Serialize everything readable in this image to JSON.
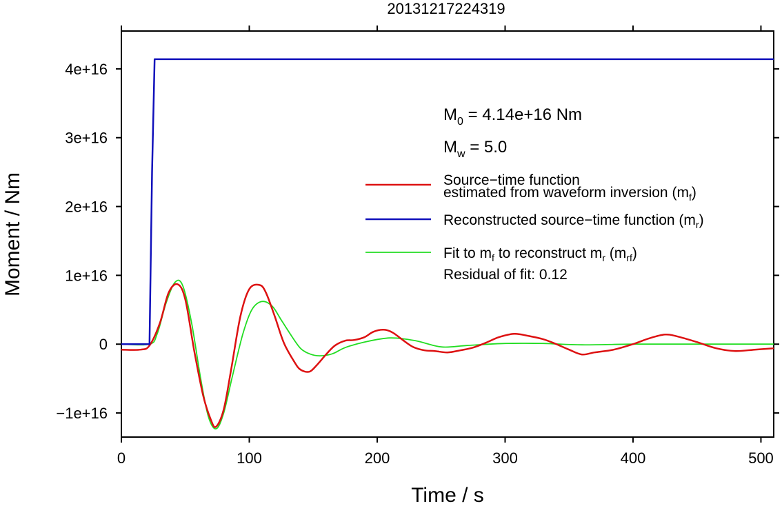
{
  "chart_data": {
    "type": "line",
    "title": "20131217224319",
    "xlabel": "Time / s",
    "ylabel": "Moment / Nm",
    "xlim": [
      0,
      510
    ],
    "ylim": [
      -1.35e+16,
      4.55e+16
    ],
    "x_ticks": [
      0,
      100,
      200,
      300,
      400,
      500
    ],
    "x_tick_labels": [
      "0",
      "100",
      "200",
      "300",
      "400",
      "500"
    ],
    "y_ticks": [
      -1e+16,
      0,
      1e+16,
      2e+16,
      3e+16,
      4e+16
    ],
    "y_tick_labels": [
      "−1e+16",
      "0",
      "1e+16",
      "2e+16",
      "3e+16",
      "4e+16"
    ],
    "grid": false,
    "legend_position": "right",
    "annotations": {
      "m0": {
        "base": "M",
        "sub": "0",
        "rest": " = 4.14e+16 Nm"
      },
      "mw": {
        "base": "M",
        "sub": "w",
        "rest": " = 5.0"
      },
      "residual": "Residual of fit: 0.12"
    },
    "legend": [
      {
        "line1": "Source−time function",
        "line2": "estimated from waveform inversion (m",
        "sub": "f",
        "close": ")",
        "color": "#dd1111"
      },
      {
        "line1": "Reconstructed source−time function (m",
        "sub": "r",
        "close": ")",
        "color": "#1111bb"
      },
      {
        "line1": "Fit to m",
        "sub1": "f",
        "mid": " to reconstruct m",
        "sub2": "r",
        "mid2": " (m",
        "sub3": "rf",
        "close": ")",
        "color": "#22dd22"
      }
    ],
    "series": [
      {
        "name": "Source−time function estimated from waveform inversion (mf)",
        "color": "#dd1111",
        "x": [
          0,
          15,
          22,
          30,
          37,
          44,
          50,
          57,
          64,
          70,
          74,
          80,
          86,
          93,
          100,
          108,
          113,
          120,
          127,
          135,
          140,
          147,
          153,
          160,
          167,
          175,
          182,
          190,
          197,
          205,
          212,
          220,
          228,
          237,
          245,
          255,
          265,
          275,
          285,
          295,
          307,
          318,
          330,
          340,
          350,
          360,
          370,
          385,
          400,
          412,
          425,
          435,
          450,
          465,
          480,
          495,
          510
        ],
        "y": [
          -800000000000000.0,
          -800000000000000.0,
          -200000000000000.0,
          3000000000000000.0,
          7500000000000000.0,
          8700000000000000.0,
          6500000000000000.0,
          -1000000000000000.0,
          -7500000000000000.0,
          -1.1e+16,
          -1.2e+16,
          -9500000000000000.0,
          -3500000000000000.0,
          4000000000000000.0,
          8000000000000000.0,
          8600000000000000.0,
          7500000000000000.0,
          4000000000000000.0,
          200000000000000.0,
          -2500000000000000.0,
          -3700000000000000.0,
          -4000000000000000.0,
          -3000000000000000.0,
          -1500000000000000.0,
          -200000000000000.0,
          500000000000000.0,
          600000000000000.0,
          1000000000000000.0,
          1800000000000000.0,
          2100000000000000.0,
          1700000000000000.0,
          600000000000000.0,
          -400000000000000.0,
          -900000000000000.0,
          -1000000000000000.0,
          -1200000000000000.0,
          -900000000000000.0,
          -500000000000000.0,
          200000000000000.0,
          1000000000000000.0,
          1500000000000000.0,
          1200000000000000.0,
          700000000000000.0,
          0.0,
          -800000000000000.0,
          -1500000000000000.0,
          -1200000000000000.0,
          -800000000000000.0,
          0.0,
          800000000000000.0,
          1400000000000000.0,
          1100000000000000.0,
          300000000000000.0,
          -600000000000000.0,
          -1000000000000000.0,
          -800000000000000.0,
          -600000000000000.0
        ]
      },
      {
        "name": "Reconstructed source−time function (mr)",
        "color": "#1111bb",
        "x": [
          0,
          22,
          24,
          26,
          510
        ],
        "y": [
          0,
          0,
          2.5e+16,
          4.14e+16,
          4.14e+16
        ]
      },
      {
        "name": "Fit to mf to reconstruct mr (mrf)",
        "color": "#22dd22",
        "x": [
          0,
          22,
          28,
          35,
          42,
          48,
          55,
          62,
          68,
          74,
          80,
          87,
          95,
          102,
          110,
          118,
          125,
          133,
          140,
          147,
          155,
          165,
          175,
          190,
          210,
          230,
          250,
          270,
          300,
          330,
          360,
          400,
          450,
          510
        ],
        "y": [
          0,
          0,
          1500000000000000.0,
          6000000000000000.0,
          9000000000000000.0,
          8500000000000000.0,
          3000000000000000.0,
          -5000000000000000.0,
          -1.05e+16,
          -1.23e+16,
          -1e+16,
          -4500000000000000.0,
          1500000000000000.0,
          5000000000000000.0,
          6200000000000000.0,
          5500000000000000.0,
          3500000000000000.0,
          1200000000000000.0,
          -600000000000000.0,
          -1400000000000000.0,
          -1700000000000000.0,
          -1400000000000000.0,
          -500000000000000.0,
          300000000000000.0,
          900000000000000.0,
          500000000000000.0,
          -400000000000000.0,
          -200000000000000.0,
          100000000000000.0,
          100000000000000.0,
          -100000000000000.0,
          0.0,
          0.0,
          0.0
        ]
      }
    ]
  }
}
